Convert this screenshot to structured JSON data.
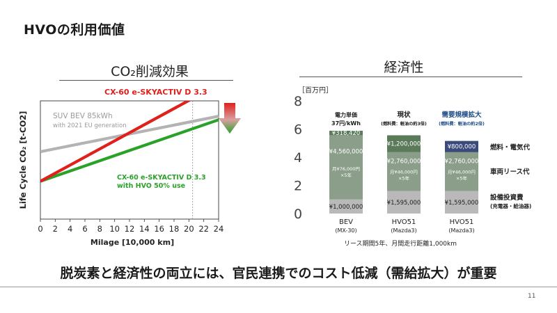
{
  "slide": {
    "title": "HVOの利用価値",
    "conclusion": "脱炭素と経済性の両立には、官民連携でのコスト低減（需給拡大）が重要",
    "page_number": "11"
  },
  "left_panel": {
    "title": "CO₂削減効果"
  },
  "right_panel": {
    "title": "経済性"
  },
  "colors": {
    "red": "#e0201b",
    "green": "#2aa22a",
    "gray_line": "#b3b3b3",
    "bar_dark": "#5a7a5a",
    "bar_mid": "#8a9e8a",
    "bar_light": "#b9b9b9",
    "bar_navy": "#3a4a7a",
    "accent_blue": "#1e4b86"
  },
  "chart_data": [
    {
      "type": "line",
      "ylabel": "Life Cycle CO₂ [t-CO2]",
      "xlabel": "Milage [10,000 km]",
      "x_ticks": [
        "0",
        "2",
        "4",
        "6",
        "8",
        "10",
        "12",
        "14",
        "16",
        "18",
        "20",
        "22",
        "24"
      ],
      "xlim": [
        0,
        24
      ],
      "ylim": [
        0,
        1
      ],
      "vertical_marker_x": 20.5,
      "series": [
        {
          "name": "CX-60 e-SKYACTIV D 3.3",
          "color": "red",
          "x": [
            0,
            24
          ],
          "y": [
            0.32,
            1.14
          ]
        },
        {
          "name": "SUV BEV 85kWh",
          "name_sub": "with 2021 EU generation",
          "color": "gray",
          "x": [
            0,
            24
          ],
          "y": [
            0.57,
            0.87
          ]
        },
        {
          "name": "CX-60 e-SKYACTIV D 3.3",
          "name_sub": "with HVO 50% use",
          "color": "green",
          "x": [
            0,
            24
          ],
          "y": [
            0.32,
            0.84
          ]
        }
      ]
    },
    {
      "type": "bar",
      "unit": "［百万円］",
      "ylim": [
        0,
        8
      ],
      "y_ticks": [
        "0",
        "2",
        "4",
        "6",
        "8"
      ],
      "xlabel": "リース期間5年、月間走行距離1,000km",
      "categories": [
        {
          "name": "BEV",
          "sub": "(MX-30)",
          "header": "電力単価",
          "header_sub": "37円/kWh",
          "header_color": "#1a1a1a"
        },
        {
          "name": "HVO51",
          "sub": "(Mazda3)",
          "header": "現状",
          "header_sub": "(燃料費：軽油の約3倍)",
          "header_color": "#1a1a1a"
        },
        {
          "name": "HVO51",
          "sub": "(Mazda3)",
          "header": "需要規模拡大",
          "header_sub": "(燃料費：軽油の約2倍)",
          "header_color": "#1e4b86"
        }
      ],
      "series": [
        {
          "name": "設備投資費",
          "name_sub": "(充電器・給油器)",
          "values": [
            1.0,
            1.595,
            1.595
          ],
          "labels": [
            "¥1,000,000",
            "¥1,595,000",
            "¥1,595,000"
          ]
        },
        {
          "name": "車両リース代",
          "values": [
            4.56,
            2.76,
            2.76
          ],
          "labels": [
            "¥4,560,000",
            "¥2,760,000",
            "¥2,760,000"
          ],
          "sublabels": [
            "月¥76,000円",
            "月¥46,000円",
            "月¥46,000円"
          ],
          "sublabels2": [
            "×5年",
            "×5年",
            "×5年"
          ]
        },
        {
          "name": "燃料・電気代",
          "values": [
            0.318,
            1.2,
            0.8
          ],
          "labels": [
            "¥318,420",
            "¥1,200,000",
            "¥800,000"
          ]
        }
      ]
    }
  ]
}
